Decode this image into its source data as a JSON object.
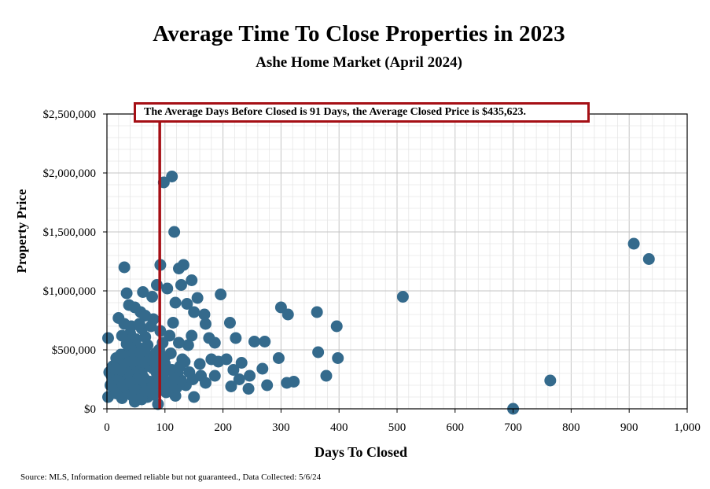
{
  "chart_data": {
    "type": "scatter",
    "title": "Average Time To Close Properties in 2023",
    "subtitle": "Ashe Home Market (April 2024)",
    "xlabel": "Days To Closed",
    "ylabel": "Property Price",
    "xlim": [
      0,
      1000
    ],
    "ylim": [
      0,
      2500000
    ],
    "xticks": [
      {
        "value": 0,
        "label": "0"
      },
      {
        "value": 100,
        "label": "100"
      },
      {
        "value": 200,
        "label": "200"
      },
      {
        "value": 300,
        "label": "300"
      },
      {
        "value": 400,
        "label": "400"
      },
      {
        "value": 500,
        "label": "500"
      },
      {
        "value": 600,
        "label": "600"
      },
      {
        "value": 700,
        "label": "700"
      },
      {
        "value": 800,
        "label": "800"
      },
      {
        "value": 900,
        "label": "900"
      },
      {
        "value": 1000,
        "label": "1,000"
      }
    ],
    "yticks": [
      {
        "value": 0,
        "label": "$0"
      },
      {
        "value": 500000,
        "label": "$500,000"
      },
      {
        "value": 1000000,
        "label": "$1,000,000"
      },
      {
        "value": 1500000,
        "label": "$1,500,000"
      },
      {
        "value": 2000000,
        "label": "$2,000,000"
      },
      {
        "value": 2500000,
        "label": "$2,500,000"
      }
    ],
    "grid": true,
    "marker_color": "#346a8c",
    "reference_line": {
      "x": 91,
      "color": "#a50f15"
    },
    "annotation": "The Average Days Before Closed is 91 Days, the Average Closed Price is $435,623.",
    "points": [
      [
        30,
        1200000
      ],
      [
        98,
        1920000
      ],
      [
        112,
        1970000
      ],
      [
        116,
        1500000
      ],
      [
        92,
        1220000
      ],
      [
        132,
        1220000
      ],
      [
        124,
        1190000
      ],
      [
        146,
        1090000
      ],
      [
        128,
        1050000
      ],
      [
        86,
        1050000
      ],
      [
        34,
        980000
      ],
      [
        62,
        990000
      ],
      [
        78,
        950000
      ],
      [
        104,
        1020000
      ],
      [
        118,
        900000
      ],
      [
        138,
        890000
      ],
      [
        156,
        940000
      ],
      [
        196,
        970000
      ],
      [
        38,
        880000
      ],
      [
        48,
        860000
      ],
      [
        58,
        820000
      ],
      [
        66,
        790000
      ],
      [
        80,
        760000
      ],
      [
        114,
        730000
      ],
      [
        150,
        820000
      ],
      [
        168,
        800000
      ],
      [
        170,
        720000
      ],
      [
        176,
        600000
      ],
      [
        186,
        560000
      ],
      [
        212,
        730000
      ],
      [
        222,
        600000
      ],
      [
        254,
        570000
      ],
      [
        272,
        570000
      ],
      [
        300,
        860000
      ],
      [
        312,
        800000
      ],
      [
        362,
        820000
      ],
      [
        396,
        700000
      ],
      [
        364,
        480000
      ],
      [
        398,
        430000
      ],
      [
        378,
        280000
      ],
      [
        296,
        430000
      ],
      [
        322,
        230000
      ],
      [
        310,
        220000
      ],
      [
        268,
        340000
      ],
      [
        276,
        200000
      ],
      [
        246,
        280000
      ],
      [
        244,
        170000
      ],
      [
        228,
        250000
      ],
      [
        214,
        190000
      ],
      [
        232,
        390000
      ],
      [
        218,
        330000
      ],
      [
        206,
        420000
      ],
      [
        192,
        400000
      ],
      [
        180,
        420000
      ],
      [
        186,
        280000
      ],
      [
        170,
        220000
      ],
      [
        160,
        380000
      ],
      [
        148,
        250000
      ],
      [
        150,
        100000
      ],
      [
        140,
        540000
      ],
      [
        146,
        620000
      ],
      [
        130,
        420000
      ],
      [
        122,
        300000
      ],
      [
        118,
        110000
      ],
      [
        110,
        200000
      ],
      [
        100,
        380000
      ],
      [
        102,
        140000
      ],
      [
        96,
        270000
      ],
      [
        90,
        500000
      ],
      [
        84,
        170000
      ],
      [
        88,
        40000
      ],
      [
        80,
        340000
      ],
      [
        74,
        230000
      ],
      [
        70,
        100000
      ],
      [
        68,
        460000
      ],
      [
        64,
        360000
      ],
      [
        60,
        300000
      ],
      [
        58,
        210000
      ],
      [
        56,
        150000
      ],
      [
        54,
        520000
      ],
      [
        52,
        440000
      ],
      [
        50,
        380000
      ],
      [
        48,
        60000
      ],
      [
        46,
        310000
      ],
      [
        44,
        250000
      ],
      [
        42,
        180000
      ],
      [
        40,
        640000
      ],
      [
        38,
        560000
      ],
      [
        36,
        480000
      ],
      [
        34,
        410000
      ],
      [
        32,
        340000
      ],
      [
        30,
        130000
      ],
      [
        28,
        270000
      ],
      [
        26,
        620000
      ],
      [
        24,
        460000
      ],
      [
        22,
        380000
      ],
      [
        20,
        200000
      ],
      [
        18,
        300000
      ],
      [
        16,
        430000
      ],
      [
        14,
        250000
      ],
      [
        12,
        160000
      ],
      [
        10,
        360000
      ],
      [
        8,
        280000
      ],
      [
        6,
        200000
      ],
      [
        4,
        310000
      ],
      [
        2,
        100000
      ],
      [
        2,
        600000
      ],
      [
        20,
        770000
      ],
      [
        30,
        720000
      ],
      [
        42,
        700000
      ],
      [
        60,
        680000
      ],
      [
        76,
        700000
      ],
      [
        92,
        660000
      ],
      [
        108,
        620000
      ],
      [
        124,
        560000
      ],
      [
        96,
        560000
      ],
      [
        70,
        540000
      ],
      [
        50,
        590000
      ],
      [
        40,
        520000
      ],
      [
        66,
        610000
      ],
      [
        84,
        470000
      ],
      [
        110,
        470000
      ],
      [
        126,
        360000
      ],
      [
        142,
        310000
      ],
      [
        162,
        280000
      ],
      [
        136,
        200000
      ],
      [
        104,
        230000
      ],
      [
        80,
        120000
      ],
      [
        60,
        80000
      ],
      [
        44,
        110000
      ],
      [
        26,
        90000
      ],
      [
        16,
        130000
      ],
      [
        112,
        330000
      ],
      [
        94,
        160000
      ],
      [
        56,
        720000
      ],
      [
        72,
        420000
      ],
      [
        36,
        300000
      ],
      [
        28,
        200000
      ],
      [
        48,
        170000
      ],
      [
        64,
        260000
      ],
      [
        86,
        300000
      ],
      [
        100,
        440000
      ],
      [
        120,
        180000
      ],
      [
        134,
        400000
      ],
      [
        24,
        330000
      ],
      [
        52,
        250000
      ],
      [
        78,
        190000
      ],
      [
        90,
        230000
      ],
      [
        66,
        150000
      ],
      [
        40,
        230000
      ],
      [
        14,
        340000
      ],
      [
        74,
        360000
      ],
      [
        62,
        420000
      ],
      [
        46,
        470000
      ],
      [
        34,
        550000
      ],
      [
        44,
        400000
      ],
      [
        82,
        400000
      ],
      [
        106,
        330000
      ],
      [
        128,
        240000
      ],
      [
        116,
        260000
      ],
      [
        98,
        320000
      ],
      [
        58,
        480000
      ],
      [
        700,
        0
      ],
      [
        764,
        240000
      ],
      [
        510,
        950000
      ],
      [
        908,
        1400000
      ],
      [
        934,
        1270000
      ]
    ]
  },
  "footer": {
    "source": "Source: MLS, Information deemed reliable but not guaranteed., Data Collected: 5/6/24"
  }
}
